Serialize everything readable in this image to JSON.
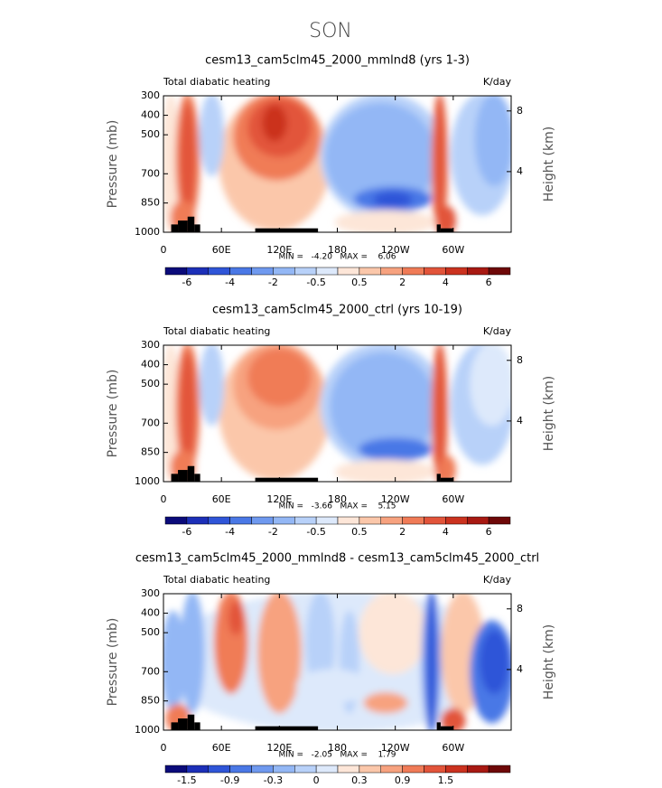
{
  "title": "SON",
  "chart_data": [
    {
      "type": "contour",
      "title": "cesm13_cam5clm45_2000_mmlnd8 (yrs 1-3)",
      "subtitle": "Total diabatic heating",
      "units": "K/day",
      "ylabel": "Pressure (mb)",
      "y2label": "Height (km)",
      "stats": "MIN =   -4.20   MAX =    6.06",
      "xlim": [
        0,
        360
      ],
      "xticks": [
        0,
        {
          "value": 60,
          "label": "60E"
        },
        {
          "value": 120,
          "label": "120E"
        },
        180,
        {
          "value": 240,
          "label": "120W"
        },
        {
          "value": 300,
          "label": "60W"
        }
      ],
      "ylim": [
        1000,
        300
      ],
      "yticks": [
        300,
        400,
        500,
        700,
        850,
        1000
      ],
      "y2lim": [
        0,
        9
      ],
      "y2ticks": [
        4,
        8
      ],
      "colors": [
        "#0b0b7a",
        "#1c2fb8",
        "#2f55d8",
        "#4a78e6",
        "#6f99ef",
        "#93b7f5",
        "#b8d1f9",
        "#dde9fb",
        "#fde6d8",
        "#fbc7aa",
        "#f7a27f",
        "#f07b57",
        "#e2543a",
        "#cb321f",
        "#a81912",
        "#6e0808"
      ],
      "colorbar_labels": [
        -6,
        -4,
        -2,
        -0.5,
        0.5,
        2,
        4,
        6
      ]
    },
    {
      "type": "contour",
      "title": "cesm13_cam5clm45_2000_ctrl (yrs 10-19)",
      "subtitle": "Total diabatic heating",
      "units": "K/day",
      "ylabel": "Pressure (mb)",
      "y2label": "Height (km)",
      "stats": "MIN =   -3.66   MAX =    5.15",
      "xlim": [
        0,
        360
      ],
      "xticks": [
        0,
        {
          "value": 60,
          "label": "60E"
        },
        {
          "value": 120,
          "label": "120E"
        },
        180,
        {
          "value": 240,
          "label": "120W"
        },
        {
          "value": 300,
          "label": "60W"
        }
      ],
      "ylim": [
        1000,
        300
      ],
      "yticks": [
        300,
        400,
        500,
        700,
        850,
        1000
      ],
      "y2lim": [
        0,
        9
      ],
      "y2ticks": [
        4,
        8
      ],
      "colors": [
        "#0b0b7a",
        "#1c2fb8",
        "#2f55d8",
        "#4a78e6",
        "#6f99ef",
        "#93b7f5",
        "#b8d1f9",
        "#dde9fb",
        "#fde6d8",
        "#fbc7aa",
        "#f7a27f",
        "#f07b57",
        "#e2543a",
        "#cb321f",
        "#a81912",
        "#6e0808"
      ],
      "colorbar_labels": [
        -6,
        -4,
        -2,
        -0.5,
        0.5,
        2,
        4,
        6
      ]
    },
    {
      "type": "contour",
      "title": "cesm13_cam5clm45_2000_mmlnd8 - cesm13_cam5clm45_2000_ctrl",
      "subtitle": "Total diabatic heating",
      "units": "K/day",
      "ylabel": "Pressure (mb)",
      "y2label": "Height (km)",
      "stats": "MIN =   -2.05   MAX =    1.79",
      "xlim": [
        0,
        360
      ],
      "xticks": [
        0,
        {
          "value": 60,
          "label": "60E"
        },
        {
          "value": 120,
          "label": "120E"
        },
        180,
        {
          "value": 240,
          "label": "120W"
        },
        {
          "value": 300,
          "label": "60W"
        }
      ],
      "ylim": [
        1000,
        300
      ],
      "yticks": [
        300,
        400,
        500,
        700,
        850,
        1000
      ],
      "y2lim": [
        0,
        9
      ],
      "y2ticks": [
        4,
        8
      ],
      "colors": [
        "#0b0b7a",
        "#1c2fb8",
        "#2f55d8",
        "#4a78e6",
        "#6f99ef",
        "#93b7f5",
        "#b8d1f9",
        "#dde9fb",
        "#fde6d8",
        "#fbc7aa",
        "#f7a27f",
        "#f07b57",
        "#e2543a",
        "#cb321f",
        "#a81912",
        "#6e0808"
      ],
      "colorbar_labels": [
        -1.5,
        -0.9,
        -0.3,
        0,
        0.3,
        0.9,
        1.5
      ]
    }
  ]
}
